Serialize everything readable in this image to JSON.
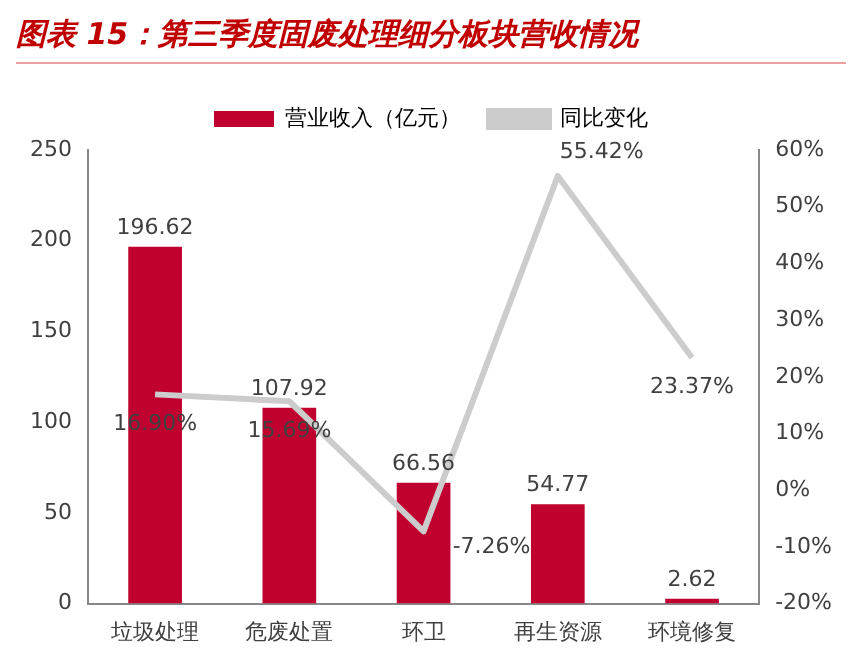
{
  "chart_data": {
    "type": "bar",
    "title": "图表 15：第三季度固废处理细分板块营收情况",
    "categories": [
      "垃圾处理",
      "危废处置",
      "环卫",
      "再生资源",
      "环境修复"
    ],
    "series": [
      {
        "name": "营业收入（亿元）",
        "color": "#c0002f",
        "values": [
          196.62,
          107.92,
          66.56,
          54.77,
          2.62
        ],
        "value_labels": [
          "196.62",
          "107.92",
          "66.56",
          "54.77",
          "2.62"
        ]
      },
      {
        "name": "同比变化",
        "type": "line",
        "axis": "y2",
        "color": "#cccccc",
        "values": [
          16.9,
          15.69,
          -7.26,
          55.42,
          23.37
        ],
        "value_labels": [
          "16.90%",
          "15.69%",
          "-7.26%",
          "55.42%",
          "23.37%"
        ]
      }
    ],
    "ylim": [
      0,
      250
    ],
    "yticks": [
      0,
      50,
      100,
      150,
      200,
      250
    ],
    "y2lim": [
      -20,
      60
    ],
    "y2ticks": [
      {
        "value": -20,
        "label": "-20%"
      },
      {
        "value": -10,
        "label": "-10%"
      },
      {
        "value": 0,
        "label": "0%"
      },
      {
        "value": 10,
        "label": "10%"
      },
      {
        "value": 20,
        "label": "20%"
      },
      {
        "value": 30,
        "label": "30%"
      },
      {
        "value": 40,
        "label": "40%"
      },
      {
        "value": 50,
        "label": "50%"
      },
      {
        "value": 60,
        "label": "60%"
      }
    ],
    "grid": false,
    "legend": "top",
    "marker": "none"
  }
}
